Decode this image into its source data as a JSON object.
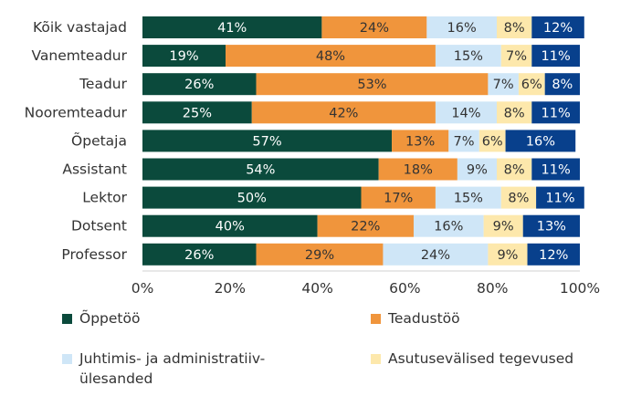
{
  "chart_data": {
    "type": "bar",
    "orientation": "horizontal",
    "stacked": "percent",
    "categories": [
      "Kõik vastajad",
      "Vanemteadur",
      "Teadur",
      "Nooremteadur",
      "Õpetaja",
      "Assistant",
      "Lektor",
      "Dotsent",
      "Professor"
    ],
    "series": [
      {
        "name": "Õppetöö",
        "color": "#0b4a3c",
        "label_color": "#ffffff",
        "values": [
          41,
          19,
          26,
          25,
          57,
          54,
          50,
          40,
          26
        ]
      },
      {
        "name": "Teadustöö",
        "color": "#f0953c",
        "label_color": "#333333",
        "values": [
          24,
          48,
          53,
          42,
          13,
          18,
          17,
          22,
          29
        ]
      },
      {
        "name": "Juhtimis- ja administratiiv-ülesanded",
        "color": "#cfe6f7",
        "label_color": "#333333",
        "values": [
          16,
          15,
          7,
          14,
          7,
          9,
          15,
          16,
          24
        ]
      },
      {
        "name": "Asutusevälised tegevused",
        "color": "#fde8ac",
        "label_color": "#333333",
        "values": [
          8,
          7,
          6,
          8,
          6,
          8,
          8,
          9,
          9
        ]
      },
      {
        "name": "",
        "color": "#08408c",
        "label_color": "#ffffff",
        "values": [
          12,
          11,
          8,
          11,
          16,
          11,
          11,
          13,
          12
        ]
      }
    ],
    "value_suffix": "%",
    "xlim": [
      0,
      100
    ],
    "xticks": [
      "0%",
      "20%",
      "40%",
      "60%",
      "80%",
      "100%"
    ],
    "grid": false,
    "legend_position": "bottom"
  },
  "legend": [
    {
      "label": "Õppetöö",
      "color": "#0b4a3c"
    },
    {
      "label": "Teadustöö",
      "color": "#f0953c"
    },
    {
      "label": "Juhtimis- ja administratiiv-ülesanded",
      "color": "#cfe6f7"
    },
    {
      "label": "Asutusevälised tegevused",
      "color": "#fde8ac"
    }
  ]
}
